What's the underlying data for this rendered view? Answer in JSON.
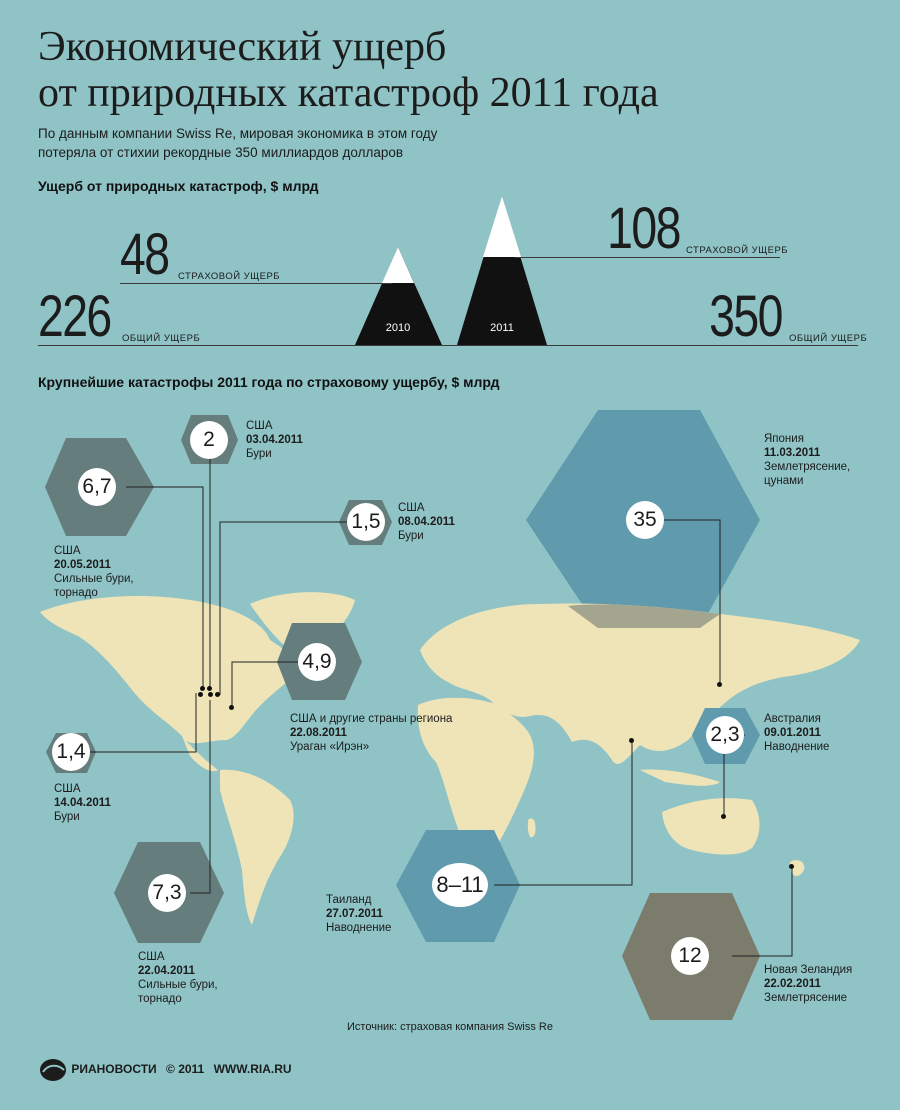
{
  "title_line1": "Экономический ущерб",
  "title_line2": "от природных катастроф 2011 года",
  "subtitle_line1": "По данным компании Swiss Re, мировая экономика в этом году",
  "subtitle_line2": "потеряла от стихии рекордные 350 миллиардов долларов",
  "section1_title": "Ущерб от природных катастроф, $ млрд",
  "y2010": {
    "insured": "48",
    "insured_label": "СТРАХОВОЙ УЩЕРБ",
    "total": "226",
    "total_label": "ОБЩИЙ УЩЕРБ",
    "year": "2010"
  },
  "y2011": {
    "insured": "108",
    "insured_label": "СТРАХОВОЙ УЩЕРБ",
    "total": "350",
    "total_label": "ОБЩИЙ УЩЕРБ",
    "year": "2011"
  },
  "section2_title": "Крупнейшие катастрофы 2011 года по страховому ущербу, $ млрд",
  "events": [
    {
      "value": "2",
      "country": "США",
      "date": "03.04.2011",
      "type": "Бури"
    },
    {
      "value": "6,7",
      "country": "США",
      "date": "20.05.2011",
      "type1": "Сильные бури,",
      "type2": "торнадо"
    },
    {
      "value": "1,5",
      "country": "США",
      "date": "08.04.2011",
      "type": "Бури"
    },
    {
      "value": "35",
      "country": "Япония",
      "date": "11.03.2011",
      "type1": "Землетрясение,",
      "type2": "цунами"
    },
    {
      "value": "4,9",
      "country": "США и другие страны региона",
      "date": "22.08.2011",
      "type": "Ураган «Ирэн»"
    },
    {
      "value": "1,4",
      "country": "США",
      "date": "14.04.2011",
      "type": "Бури"
    },
    {
      "value": "2,3",
      "country": "Австралия",
      "date": "09.01.2011",
      "type": "Наводнение"
    },
    {
      "value": "7,3",
      "country": "США",
      "date": "22.04.2011",
      "type1": "Сильные бури,",
      "type2": "торнадо"
    },
    {
      "value": "8–11",
      "country": "Таиланд",
      "date": "27.07.2011",
      "type": "Наводнение"
    },
    {
      "value": "12",
      "country": "Новая Зеландия",
      "date": "22.02.2011",
      "type": "Землетрясение"
    }
  ],
  "source": "Источник: страховая компания Swiss Re",
  "logo": {
    "brand": "РИАНОВОСТИ",
    "copyright": "© 2011",
    "site": "WWW.RIA.RU"
  },
  "colors": {
    "background": "#8fc3c6",
    "hex_gray": "#657d7c",
    "hex_blue": "#5f9aad",
    "hex_olive": "#7c7c6c",
    "land": "#efe4b8"
  }
}
